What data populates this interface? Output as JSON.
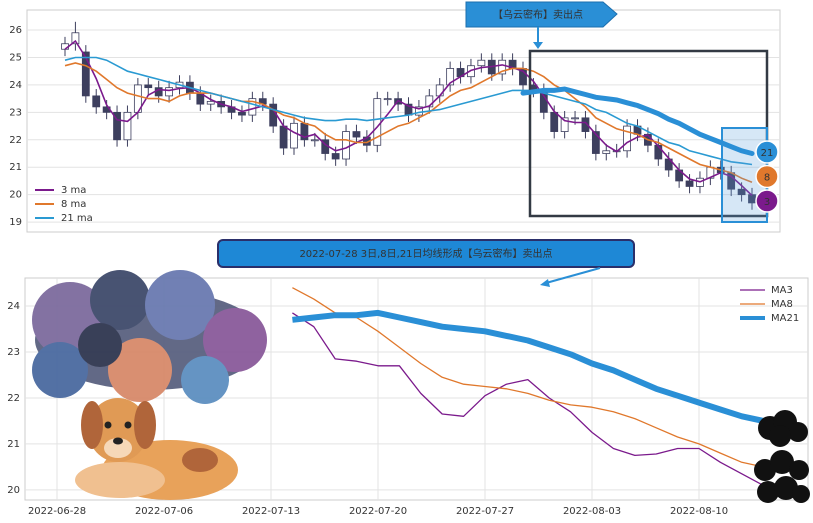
{
  "chart_data": [
    {
      "type": "candlestick",
      "open": [
        25.3,
        25.5,
        25.2,
        23.6,
        23.2,
        23.0,
        22.0,
        23.0,
        24.0,
        23.9,
        23.6,
        23.9,
        24.1,
        23.7,
        23.3,
        23.4,
        23.2,
        23.0,
        22.9,
        23.5,
        23.3,
        22.5,
        21.7,
        22.6,
        22.0,
        22.0,
        21.5,
        21.3,
        22.3,
        22.1,
        21.8,
        23.5,
        23.5,
        23.3,
        22.9,
        23.2,
        23.6,
        24.0,
        24.6,
        24.3,
        24.7,
        24.9,
        24.4,
        24.9,
        24.6,
        24.0,
        23.8,
        23.0,
        22.3,
        22.8,
        22.8,
        22.3,
        21.5,
        21.6,
        21.6,
        22.5,
        22.2,
        21.8,
        21.3,
        20.9,
        20.5,
        20.3,
        20.6,
        21.0,
        20.8,
        20.2,
        20.0
      ],
      "high": [
        25.75,
        26.3,
        25.45,
        23.85,
        23.45,
        23.25,
        23.25,
        24.25,
        24.25,
        24.15,
        24.15,
        24.35,
        24.35,
        23.95,
        23.65,
        23.65,
        23.45,
        23.25,
        23.75,
        23.75,
        23.55,
        22.75,
        22.85,
        22.85,
        22.25,
        22.25,
        21.75,
        22.55,
        22.55,
        22.35,
        23.75,
        23.75,
        23.75,
        23.55,
        23.45,
        23.85,
        24.25,
        24.85,
        24.85,
        24.95,
        25.15,
        25.15,
        25.15,
        25.15,
        24.85,
        24.25,
        24.05,
        23.25,
        23.05,
        23.05,
        23.05,
        22.55,
        21.85,
        21.85,
        22.75,
        22.75,
        22.45,
        22.05,
        21.55,
        21.15,
        20.75,
        20.85,
        21.25,
        21.25,
        21.05,
        20.45,
        20.25
      ],
      "low": [
        25.05,
        25.25,
        23.35,
        22.95,
        22.75,
        21.75,
        21.75,
        22.75,
        23.65,
        23.35,
        23.35,
        23.65,
        23.45,
        23.05,
        23.05,
        22.95,
        22.75,
        22.65,
        22.65,
        23.05,
        22.25,
        21.45,
        21.45,
        21.75,
        21.75,
        21.25,
        21.05,
        21.05,
        21.85,
        21.55,
        21.55,
        23.25,
        23.05,
        22.65,
        22.65,
        22.95,
        23.35,
        23.75,
        24.05,
        24.05,
        24.45,
        24.15,
        24.15,
        24.35,
        23.75,
        23.55,
        22.75,
        22.05,
        22.05,
        22.55,
        22.05,
        21.25,
        21.25,
        21.35,
        21.35,
        21.95,
        21.55,
        21.05,
        20.65,
        20.25,
        20.05,
        20.05,
        20.35,
        20.55,
        19.95,
        19.75,
        19.45
      ],
      "close": [
        25.5,
        25.9,
        23.6,
        23.2,
        23.0,
        22.0,
        23.0,
        24.0,
        23.9,
        23.6,
        23.9,
        24.1,
        23.7,
        23.3,
        23.4,
        23.2,
        23.0,
        22.9,
        23.5,
        23.3,
        22.5,
        21.7,
        22.6,
        22.0,
        22.0,
        21.5,
        21.3,
        22.3,
        22.1,
        21.8,
        23.5,
        23.5,
        23.3,
        22.9,
        23.2,
        23.6,
        24.0,
        24.6,
        24.3,
        24.7,
        24.9,
        24.4,
        24.9,
        24.6,
        24.0,
        23.8,
        23.0,
        22.3,
        22.8,
        22.8,
        22.3,
        21.5,
        21.6,
        21.6,
        22.5,
        22.2,
        21.8,
        21.3,
        20.9,
        20.5,
        20.3,
        20.6,
        21.0,
        20.8,
        20.2,
        20.0,
        19.7
      ],
      "up_color": "#ffffff",
      "down_color": "#3d3f5e",
      "edge_color": "#3d3f5e",
      "series": [
        {
          "name": "3 ma",
          "color": "#7b1a8c",
          "values": [
            25.3,
            25.6,
            25.0,
            24.23,
            23.27,
            22.73,
            22.67,
            23.0,
            23.63,
            23.83,
            23.8,
            23.87,
            23.9,
            23.7,
            23.47,
            23.3,
            23.2,
            23.03,
            23.13,
            23.23,
            23.1,
            22.5,
            22.27,
            22.1,
            22.2,
            21.83,
            21.6,
            21.7,
            21.9,
            22.07,
            22.47,
            22.93,
            23.43,
            23.23,
            23.13,
            23.23,
            23.6,
            24.07,
            24.3,
            24.53,
            24.63,
            24.67,
            24.73,
            24.63,
            24.5,
            24.13,
            23.6,
            23.03,
            22.7,
            22.63,
            22.63,
            22.2,
            21.8,
            21.57,
            21.9,
            22.1,
            22.17,
            21.77,
            21.33,
            20.9,
            20.57,
            20.47,
            20.63,
            20.8,
            20.67,
            20.33,
            19.97
          ]
        },
        {
          "name": "8 ma",
          "color": "#e0782c",
          "values": [
            24.7,
            24.8,
            24.7,
            24.5,
            24.2,
            23.9,
            23.7,
            23.6,
            23.5,
            23.5,
            23.4,
            23.6,
            23.7,
            23.7,
            23.7,
            23.6,
            23.5,
            23.4,
            23.4,
            23.3,
            23.1,
            22.9,
            22.8,
            22.6,
            22.5,
            22.2,
            22.0,
            22.0,
            21.9,
            21.9,
            22.1,
            22.3,
            22.5,
            22.6,
            22.8,
            23.0,
            23.3,
            23.6,
            23.8,
            23.9,
            24.1,
            24.3,
            24.5,
            24.6,
            24.6,
            24.5,
            24.3,
            24.0,
            23.8,
            23.5,
            23.2,
            22.8,
            22.6,
            22.4,
            22.3,
            22.2,
            22.0,
            21.9,
            21.7,
            21.5,
            21.3,
            21.1,
            21.0,
            20.9,
            20.8,
            20.6,
            20.45
          ]
        },
        {
          "name": "21 ma",
          "color": "#2a9ad2",
          "values": [
            24.9,
            25.0,
            25.0,
            25.0,
            24.9,
            24.7,
            24.5,
            24.4,
            24.3,
            24.2,
            24.1,
            24.0,
            23.9,
            23.8,
            23.7,
            23.6,
            23.5,
            23.4,
            23.3,
            23.2,
            23.1,
            23.0,
            22.9,
            22.8,
            22.75,
            22.7,
            22.7,
            22.75,
            22.75,
            22.7,
            22.75,
            22.8,
            22.85,
            22.9,
            23.0,
            23.05,
            23.1,
            23.2,
            23.3,
            23.4,
            23.5,
            23.6,
            23.7,
            23.8,
            23.8,
            23.8,
            23.7,
            23.6,
            23.5,
            23.4,
            23.3,
            23.1,
            23.0,
            22.8,
            22.6,
            22.5,
            22.3,
            22.1,
            21.9,
            21.8,
            21.6,
            21.5,
            21.4,
            21.3,
            21.2,
            21.15,
            21.1
          ]
        }
      ],
      "ylim": [
        18.64,
        26.73
      ],
      "yticks": [
        19,
        20,
        21,
        22,
        23,
        24,
        25,
        26
      ],
      "grid": true,
      "legend": "lower left",
      "annotation": "【乌云密布】卖出点",
      "badges": [
        {
          "text": "21",
          "color": "#2a8fd6"
        },
        {
          "text": "8",
          "color": "#e0782c"
        },
        {
          "text": "3",
          "color": "#7b1a8c"
        }
      ]
    },
    {
      "type": "line",
      "title": "2022-07-28 3日,8日,21日均线形成【乌云密布】卖出点",
      "categories": [
        "2022-06-28",
        null,
        null,
        null,
        null,
        "2022-07-06",
        null,
        null,
        null,
        null,
        "2022-07-13",
        null,
        null,
        null,
        null,
        "2022-07-20",
        null,
        null,
        null,
        null,
        "2022-07-27",
        null,
        null,
        null,
        null,
        "2022-08-03",
        null,
        null,
        null,
        null,
        "2022-08-10",
        null,
        null,
        null,
        null
      ],
      "series": [
        {
          "name": "MA3",
          "color": "#7b1a8c",
          "width": 1.3,
          "values": [
            null,
            null,
            null,
            null,
            null,
            null,
            null,
            null,
            null,
            null,
            null,
            23.85,
            23.55,
            22.85,
            22.8,
            22.7,
            22.7,
            22.1,
            21.65,
            21.6,
            22.05,
            22.3,
            22.4,
            22.0,
            21.7,
            21.25,
            20.9,
            20.75,
            20.78,
            20.9,
            20.9,
            20.6,
            20.35,
            20.1,
            null
          ]
        },
        {
          "name": "MA8",
          "color": "#e0782c",
          "width": 1.3,
          "values": [
            null,
            null,
            null,
            null,
            null,
            null,
            null,
            null,
            null,
            null,
            null,
            24.4,
            24.15,
            23.85,
            23.75,
            23.45,
            23.1,
            22.75,
            22.45,
            22.3,
            22.25,
            22.2,
            22.1,
            21.95,
            21.85,
            21.8,
            21.7,
            21.55,
            21.35,
            21.15,
            21.0,
            20.8,
            20.6,
            20.5,
            null
          ]
        },
        {
          "name": "MA21",
          "color": "#2a8fd6",
          "width": 6,
          "values": [
            null,
            null,
            null,
            null,
            null,
            null,
            null,
            null,
            null,
            null,
            null,
            23.7,
            23.75,
            23.8,
            23.8,
            23.85,
            23.75,
            23.65,
            23.55,
            23.5,
            23.45,
            23.35,
            23.25,
            23.1,
            22.95,
            22.75,
            22.6,
            22.4,
            22.2,
            22.05,
            21.9,
            21.75,
            21.6,
            21.5,
            null
          ]
        }
      ],
      "ylim": [
        19.78,
        24.61
      ],
      "yticks": [
        20,
        21,
        22,
        23,
        24
      ],
      "grid": true,
      "legend": "upper right"
    }
  ]
}
